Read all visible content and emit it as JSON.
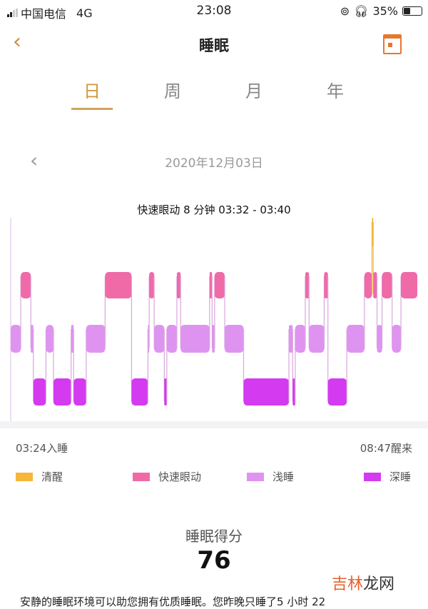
{
  "status_bar": {
    "carrier": "中国电信",
    "network": "4G",
    "time": "23:08",
    "battery": "35%",
    "battery_level": 0.35
  },
  "nav": {
    "title": "睡眠",
    "back_icon": "chevron-left-icon",
    "calendar_icon": "calendar-icon"
  },
  "tabs": [
    {
      "label": "日",
      "active": true
    },
    {
      "label": "周"
    },
    {
      "label": "月"
    },
    {
      "label": "年"
    }
  ],
  "date": "2020年12月03日",
  "chart_data": {
    "type": "timeline",
    "title": "快速眼动 8 分钟 03:32 - 03:40",
    "start_label": "03:24入睡",
    "end_label": "08:47醒来",
    "start": "03:24",
    "end": "08:47",
    "stages": [
      "awake",
      "rem",
      "light",
      "deep"
    ],
    "segments": [
      [
        "light",
        "03:24",
        "03:32"
      ],
      [
        "rem",
        "03:32",
        "03:40"
      ],
      [
        "light",
        "03:40",
        "03:42"
      ],
      [
        "deep",
        "03:42",
        "03:52"
      ],
      [
        "light",
        "03:52",
        "03:58"
      ],
      [
        "deep",
        "03:58",
        "04:12"
      ],
      [
        "light",
        "04:12",
        "04:14"
      ],
      [
        "deep",
        "04:14",
        "04:24"
      ],
      [
        "light",
        "04:24",
        "04:39"
      ],
      [
        "rem",
        "04:39",
        "05:00"
      ],
      [
        "deep",
        "05:00",
        "05:13"
      ],
      [
        "light",
        "05:13",
        "05:14"
      ],
      [
        "rem",
        "05:14",
        "05:18"
      ],
      [
        "light",
        "05:18",
        "05:26"
      ],
      [
        "deep",
        "05:26",
        "05:28"
      ],
      [
        "light",
        "05:28",
        "05:36"
      ],
      [
        "rem",
        "05:36",
        "05:39"
      ],
      [
        "light",
        "05:39",
        "06:02"
      ],
      [
        "rem",
        "06:02",
        "06:04"
      ],
      [
        "light",
        "06:04",
        "06:06"
      ],
      [
        "rem",
        "06:06",
        "06:14"
      ],
      [
        "light",
        "06:14",
        "06:29"
      ],
      [
        "deep",
        "06:29",
        "07:05"
      ],
      [
        "light",
        "07:05",
        "07:08"
      ],
      [
        "deep",
        "07:08",
        "07:10"
      ],
      [
        "light",
        "07:10",
        "07:18"
      ],
      [
        "rem",
        "07:18",
        "07:21"
      ],
      [
        "light",
        "07:21",
        "07:33"
      ],
      [
        "rem",
        "07:33",
        "07:36"
      ],
      [
        "deep",
        "07:36",
        "07:51"
      ],
      [
        "light",
        "07:51",
        "08:05"
      ],
      [
        "rem",
        "08:05",
        "08:11"
      ],
      [
        "awake",
        "08:11",
        "08:12"
      ],
      [
        "rem",
        "08:12",
        "08:15"
      ],
      [
        "light",
        "08:15",
        "08:19"
      ],
      [
        "rem",
        "08:19",
        "08:27"
      ],
      [
        "light",
        "08:27",
        "08:34"
      ],
      [
        "rem",
        "08:34",
        "08:47"
      ]
    ]
  },
  "legend": [
    {
      "key": "awake",
      "label": "清醒",
      "color": "#f5b63a"
    },
    {
      "key": "rem",
      "label": "快速眼动",
      "color": "#f06aa8"
    },
    {
      "key": "light",
      "label": "浅睡",
      "color": "#df93f0"
    },
    {
      "key": "deep",
      "label": "深睡",
      "color": "#d43af0"
    }
  ],
  "score": {
    "title": "睡眠得分",
    "value": "76"
  },
  "description": "安静的睡眠环境可以助您拥有优质睡眠。您昨晚只睡了5 小时 22",
  "watermark": {
    "part1": "吉林",
    "part2": "龙网"
  }
}
